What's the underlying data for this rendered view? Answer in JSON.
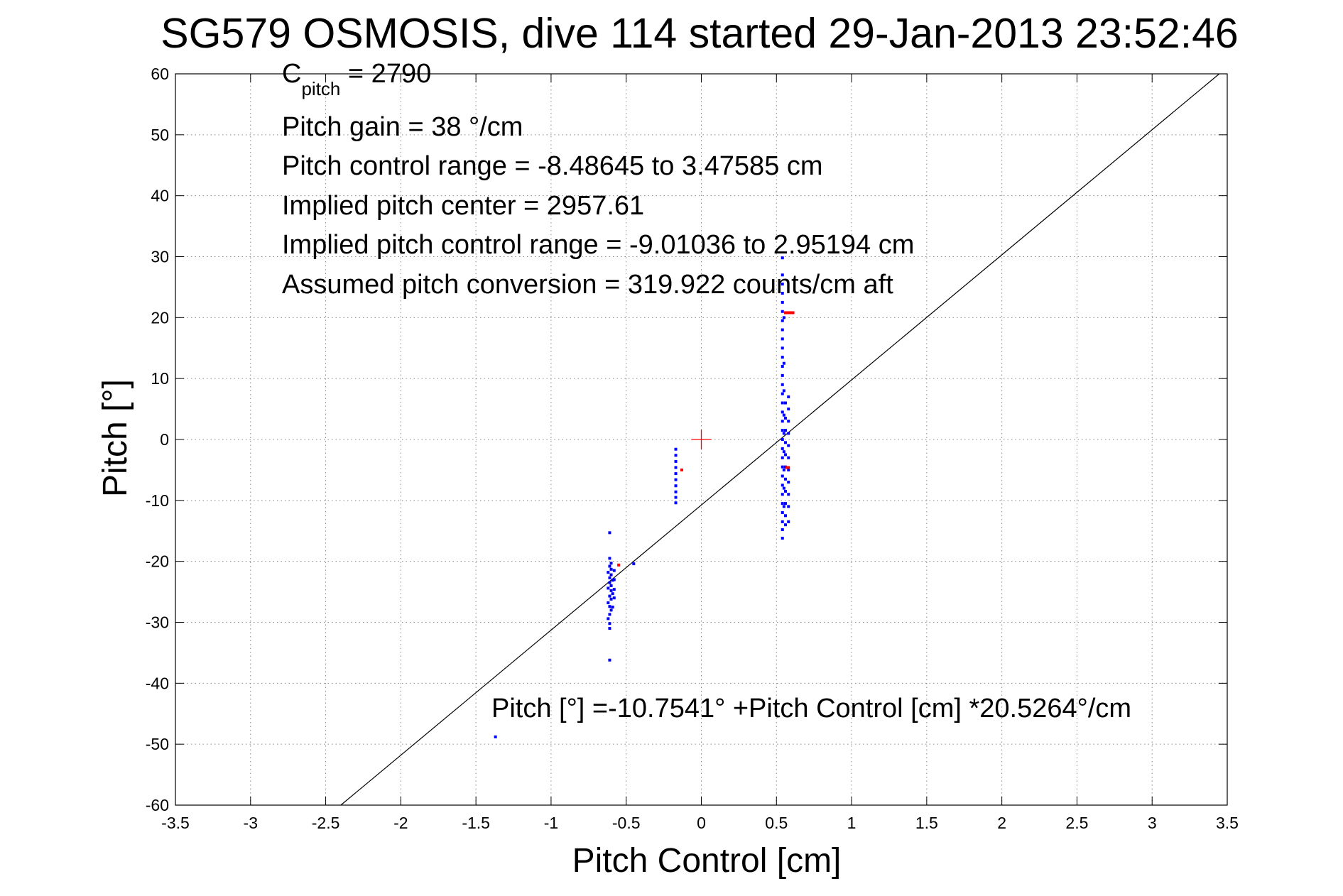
{
  "chart_data": {
    "type": "scatter",
    "title": "SG579 OSMOSIS, dive 114 started 29-Jan-2013 23:52:46",
    "xlabel": "Pitch Control [cm]",
    "ylabel": "Pitch [°]",
    "xlim": [
      -3.5,
      3.5
    ],
    "ylim": [
      -60,
      60
    ],
    "xticks": [
      "-3.5",
      "-3",
      "-2.5",
      "-2",
      "-1.5",
      "-1",
      "-0.5",
      "0",
      "0.5",
      "1",
      "1.5",
      "2",
      "2.5",
      "3",
      "3.5"
    ],
    "yticks": [
      "60",
      "50",
      "40",
      "30",
      "20",
      "10",
      "0",
      "-10",
      "-20",
      "-30",
      "-40",
      "-50",
      "-60"
    ],
    "grid": true,
    "annotations": {
      "c_pitch_main": "C",
      "c_pitch_sub": "pitch",
      "c_pitch_value": " = 2790",
      "pitch_gain": "Pitch gain = 38 °/cm",
      "control_range": "Pitch control range = -8.48645 to 3.47585 cm",
      "implied_center": "Implied pitch center = 2957.61",
      "implied_range": "Implied pitch control range = -9.01036 to 2.95194 cm",
      "assumed_conversion": "Assumed pitch conversion = 319.922 counts/cm aft",
      "fit_equation": "Pitch [°] =-10.7541° +Pitch Control [cm] *20.5264°/cm"
    },
    "fit_line": {
      "intercept": -10.7541,
      "slope": 20.5264,
      "color": "#000000"
    },
    "center_marker": {
      "x": 0,
      "y": 0,
      "color": "#ff0000"
    },
    "series": [
      {
        "color": "#0000ff",
        "points": [
          [
            -1.37,
            -48.8
          ],
          [
            -0.45,
            -20.4
          ],
          [
            -0.61,
            -15.3
          ],
          [
            -0.61,
            -19.5
          ],
          [
            -0.6,
            -20.3
          ],
          [
            -0.61,
            -20.8
          ],
          [
            -0.6,
            -21.3
          ],
          [
            -0.62,
            -21.8
          ],
          [
            -0.6,
            -22.2
          ],
          [
            -0.61,
            -22.7
          ],
          [
            -0.59,
            -23.1
          ],
          [
            -0.61,
            -23.5
          ],
          [
            -0.6,
            -24.0
          ],
          [
            -0.62,
            -24.4
          ],
          [
            -0.6,
            -24.8
          ],
          [
            -0.59,
            -25.3
          ],
          [
            -0.61,
            -25.7
          ],
          [
            -0.6,
            -26.2
          ],
          [
            -0.62,
            -26.8
          ],
          [
            -0.61,
            -27.4
          ],
          [
            -0.6,
            -28.0
          ],
          [
            -0.61,
            -28.7
          ],
          [
            -0.62,
            -29.4
          ],
          [
            -0.61,
            -30.2
          ],
          [
            -0.61,
            -31.0
          ],
          [
            -0.61,
            -36.2
          ],
          [
            -0.58,
            -21.5
          ],
          [
            -0.58,
            -23.0
          ],
          [
            -0.58,
            -24.6
          ],
          [
            -0.58,
            -26.0
          ],
          [
            -0.59,
            -27.5
          ],
          [
            -0.17,
            -1.6
          ],
          [
            -0.17,
            -2.6
          ],
          [
            -0.17,
            -3.6
          ],
          [
            -0.17,
            -4.6
          ],
          [
            -0.17,
            -5.6
          ],
          [
            -0.17,
            -6.6
          ],
          [
            -0.17,
            -7.6
          ],
          [
            -0.17,
            -8.6
          ],
          [
            -0.17,
            -9.5
          ],
          [
            -0.17,
            -10.4
          ],
          [
            0.54,
            29.8
          ],
          [
            0.54,
            27.0
          ],
          [
            0.54,
            25.5
          ],
          [
            0.54,
            24.0
          ],
          [
            0.54,
            22.5
          ],
          [
            0.54,
            21.0
          ],
          [
            0.54,
            19.5
          ],
          [
            0.54,
            18.0
          ],
          [
            0.54,
            16.5
          ],
          [
            0.54,
            15.0
          ],
          [
            0.54,
            13.5
          ],
          [
            0.54,
            12.0
          ],
          [
            0.54,
            10.5
          ],
          [
            0.54,
            9.0
          ],
          [
            0.54,
            7.5
          ],
          [
            0.54,
            6.0
          ],
          [
            0.54,
            4.5
          ],
          [
            0.54,
            3.0
          ],
          [
            0.54,
            1.5
          ],
          [
            0.54,
            0.0
          ],
          [
            0.54,
            -1.5
          ],
          [
            0.54,
            -3.0
          ],
          [
            0.54,
            -4.5
          ],
          [
            0.54,
            -6.0
          ],
          [
            0.54,
            -7.5
          ],
          [
            0.54,
            -9.0
          ],
          [
            0.54,
            -10.5
          ],
          [
            0.54,
            -12.0
          ],
          [
            0.54,
            -13.5
          ],
          [
            0.54,
            -14.8
          ],
          [
            0.54,
            -16.2
          ],
          [
            0.55,
            20.0
          ],
          [
            0.55,
            12.5
          ],
          [
            0.55,
            8.0
          ],
          [
            0.55,
            4.0
          ],
          [
            0.55,
            1.0
          ],
          [
            0.55,
            -2.0
          ],
          [
            0.55,
            -5.0
          ],
          [
            0.55,
            -8.0
          ],
          [
            0.55,
            -11.0
          ],
          [
            0.56,
            6.0
          ],
          [
            0.56,
            3.5
          ],
          [
            0.56,
            1.5
          ],
          [
            0.56,
            -0.5
          ],
          [
            0.56,
            -2.5
          ],
          [
            0.56,
            -4.5
          ],
          [
            0.56,
            -6.5
          ],
          [
            0.56,
            -8.5
          ],
          [
            0.56,
            -10.5
          ],
          [
            0.56,
            -12.5
          ],
          [
            0.56,
            -14.0
          ],
          [
            0.58,
            7.0
          ],
          [
            0.58,
            5.0
          ],
          [
            0.58,
            3.0
          ],
          [
            0.58,
            1.0
          ],
          [
            0.58,
            -1.0
          ],
          [
            0.58,
            -3.0
          ],
          [
            0.58,
            -5.0
          ],
          [
            0.58,
            -7.0
          ],
          [
            0.58,
            -9.0
          ],
          [
            0.58,
            -11.0
          ],
          [
            0.58,
            -13.5
          ]
        ]
      },
      {
        "color": "#ff0000",
        "points": [
          [
            0.56,
            20.8
          ],
          [
            0.57,
            20.8
          ],
          [
            0.58,
            20.8
          ],
          [
            0.59,
            20.8
          ],
          [
            0.6,
            20.8
          ],
          [
            0.61,
            20.8
          ],
          [
            -0.13,
            -5.0
          ],
          [
            -0.55,
            -20.6
          ],
          [
            0.57,
            -4.6
          ],
          [
            0.58,
            -4.6
          ]
        ]
      }
    ]
  }
}
